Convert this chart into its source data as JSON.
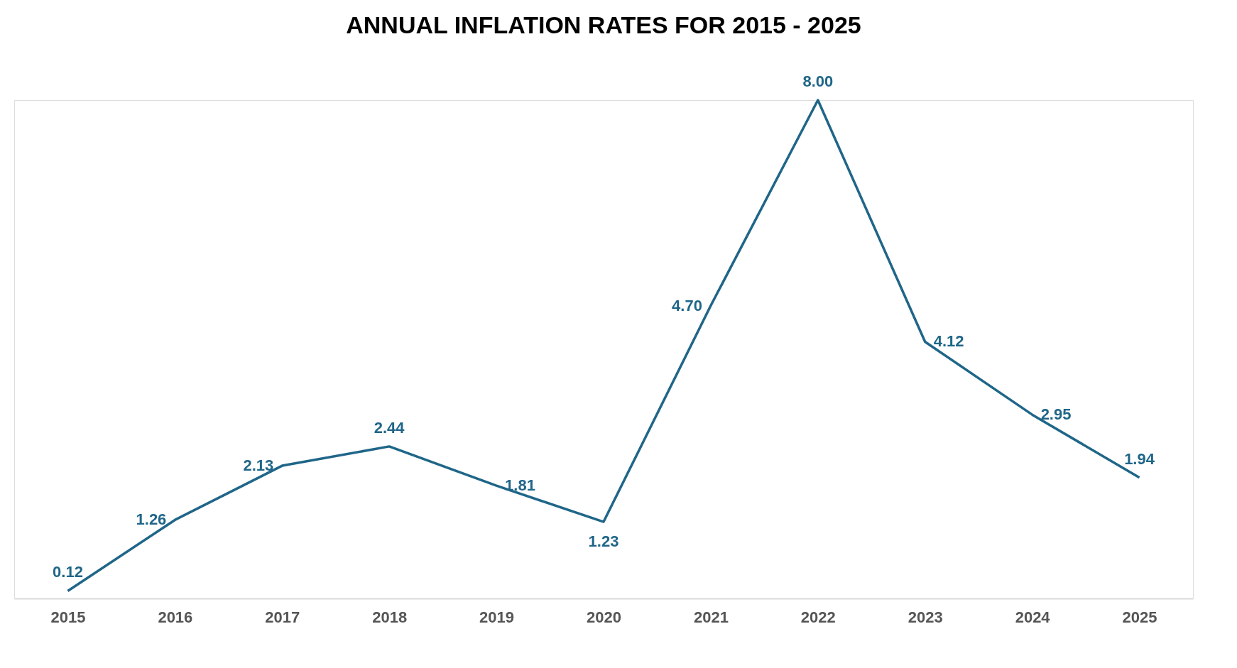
{
  "chart_data": {
    "type": "line",
    "title": "ANNUAL INFLATION RATES FOR 2015 - 2025",
    "categories": [
      "2015",
      "2016",
      "2017",
      "2018",
      "2019",
      "2020",
      "2021",
      "2022",
      "2023",
      "2024",
      "2025"
    ],
    "series": [
      {
        "color": "#1f6688",
        "values": [
          0.12,
          1.26,
          2.13,
          2.44,
          1.81,
          1.23,
          4.7,
          8.0,
          4.12,
          2.95,
          1.94
        ],
        "value_labels": [
          "0.12",
          "1.26",
          "2.13",
          "2.44",
          "1.81",
          "1.23",
          "4.70",
          "8.00",
          "4.12",
          "2.95",
          "1.94"
        ]
      }
    ],
    "grid": false,
    "legend": false,
    "marker": "none",
    "line_style": "solid"
  }
}
